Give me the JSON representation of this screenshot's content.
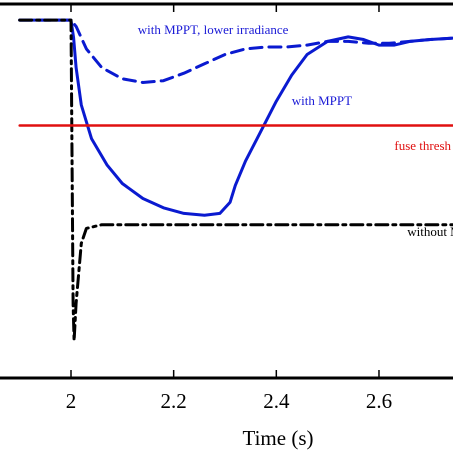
{
  "chart_data": {
    "type": "line",
    "title": "",
    "xlabel": "Time (s)",
    "ylabel": "",
    "xlim": [
      1.9,
      2.76
    ],
    "ylim": [
      0,
      1
    ],
    "x_ticks": [
      2,
      2.2,
      2.4,
      2.6
    ],
    "x_tick_labels": [
      "2",
      "2.2",
      "2.4",
      "2.6"
    ],
    "grid": false,
    "legend": "none",
    "annotations": [
      {
        "text": "with MPPT, lower irradiance",
        "x": 2.13,
        "y": 0.92,
        "color": "#1a1ad6"
      },
      {
        "text": "with MPPT",
        "x": 2.43,
        "y": 0.73,
        "color": "#1a1ad6"
      },
      {
        "text": "fuse thresh",
        "x": 2.63,
        "y": 0.61,
        "color": "#e01010"
      },
      {
        "text": "without M",
        "x": 2.655,
        "y": 0.38,
        "color": "#000000"
      }
    ],
    "series": [
      {
        "color": "#0a1ad0",
        "dash": "solid",
        "x": [
          1.9,
          1.95,
          2.0,
          2.005,
          2.01,
          2.02,
          2.04,
          2.07,
          2.1,
          2.14,
          2.18,
          2.22,
          2.26,
          2.29,
          2.31,
          2.32,
          2.34,
          2.37,
          2.4,
          2.43,
          2.46,
          2.5,
          2.54,
          2.57,
          2.6,
          2.63,
          2.66,
          2.7,
          2.76
        ],
        "values": [
          0.957,
          0.957,
          0.957,
          0.91,
          0.83,
          0.73,
          0.64,
          0.57,
          0.52,
          0.48,
          0.455,
          0.44,
          0.435,
          0.44,
          0.47,
          0.515,
          0.58,
          0.66,
          0.74,
          0.81,
          0.865,
          0.9,
          0.912,
          0.905,
          0.89,
          0.89,
          0.9,
          0.905,
          0.91
        ]
      },
      {
        "color": "#0a1ad0",
        "dash": "dashed",
        "x": [
          1.9,
          1.95,
          2.0,
          2.01,
          2.03,
          2.06,
          2.1,
          2.14,
          2.18,
          2.22,
          2.26,
          2.3,
          2.34,
          2.38,
          2.42,
          2.46,
          2.5,
          2.54,
          2.58,
          2.62,
          2.66,
          2.7,
          2.76
        ],
        "values": [
          0.957,
          0.957,
          0.957,
          0.94,
          0.88,
          0.83,
          0.8,
          0.79,
          0.795,
          0.815,
          0.84,
          0.865,
          0.88,
          0.885,
          0.885,
          0.89,
          0.9,
          0.9,
          0.895,
          0.895,
          0.9,
          0.905,
          0.91
        ]
      },
      {
        "color": "#000000",
        "dash": "dashdot",
        "x": [
          1.9,
          1.95,
          2.0,
          2.002,
          2.004,
          2.006,
          2.01,
          2.02,
          2.03,
          2.06,
          2.1,
          2.2,
          2.3,
          2.4,
          2.5,
          2.6,
          2.7,
          2.76
        ],
        "values": [
          0.957,
          0.957,
          0.957,
          0.6,
          0.2,
          0.1,
          0.2,
          0.36,
          0.4,
          0.41,
          0.41,
          0.41,
          0.41,
          0.41,
          0.41,
          0.41,
          0.41,
          0.41
        ]
      },
      {
        "color": "#e01010",
        "dash": "solid",
        "x": [
          1.9,
          2.76
        ],
        "values": [
          0.675,
          0.675
        ]
      }
    ]
  }
}
